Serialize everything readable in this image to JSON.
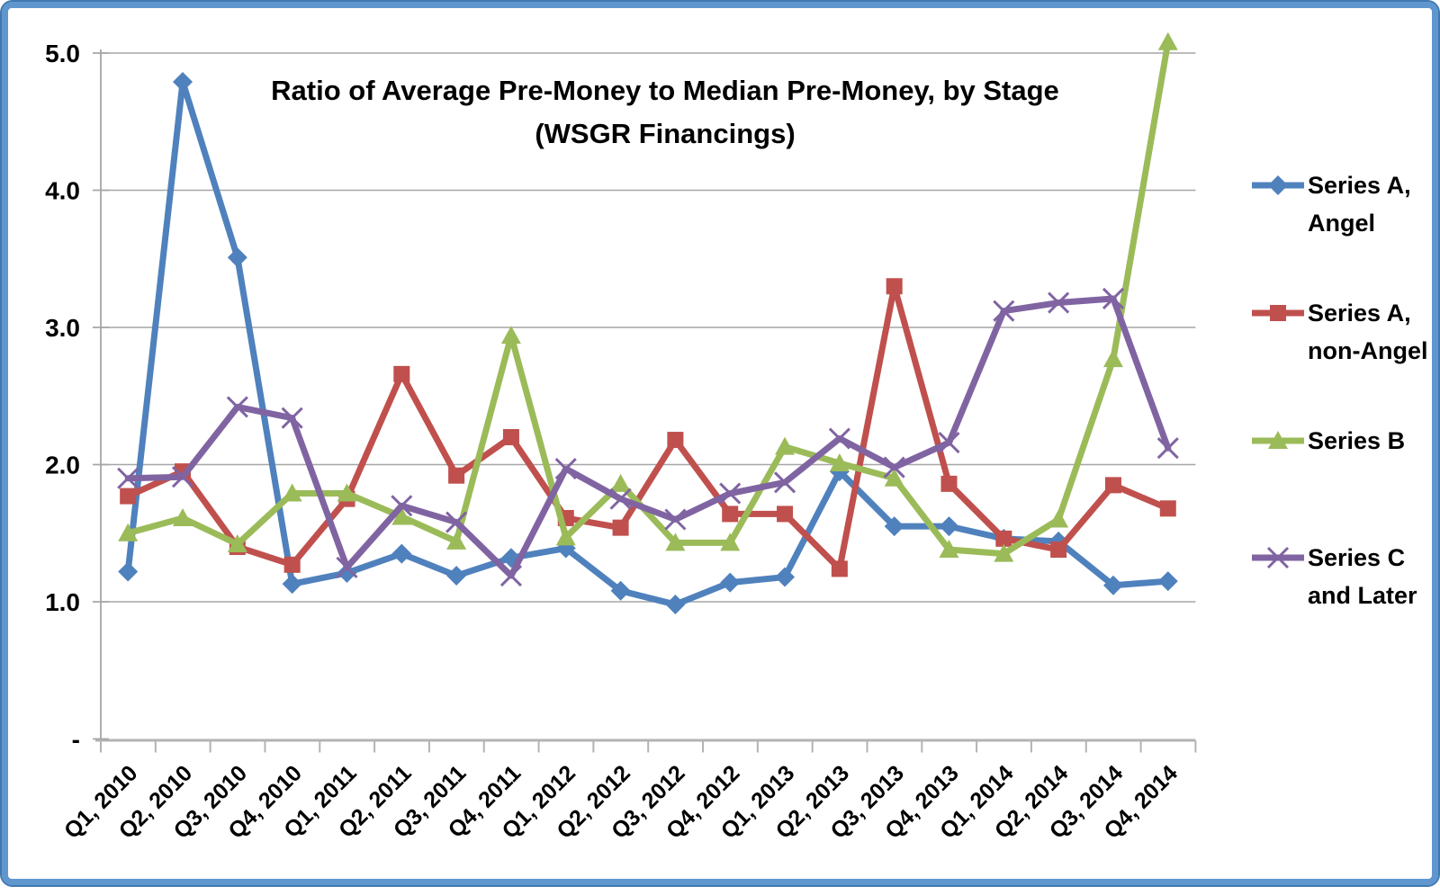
{
  "frame": {
    "border_color": "#6096ce",
    "border_edge_color": "#4178ae"
  },
  "chart_data": {
    "type": "line",
    "title_line1": "Ratio of Average Pre-Money to Median Pre-Money, by Stage",
    "title_line2": "(WSGR Financings)",
    "categories": [
      "Q1, 2010",
      "Q2, 2010",
      "Q3, 2010",
      "Q4, 2010",
      "Q1, 2011",
      "Q2, 2011",
      "Q3, 2011",
      "Q4, 2011",
      "Q1, 2012",
      "Q2, 2012",
      "Q3, 2012",
      "Q4, 2012",
      "Q1, 2013",
      "Q2, 2013",
      "Q3, 2013",
      "Q4, 2013",
      "Q1, 2014",
      "Q2, 2014",
      "Q3, 2014",
      "Q4, 2014"
    ],
    "y_axis": {
      "min": 0,
      "max": 5.0,
      "tick_interval": 1.0
    },
    "y_ticks": [
      {
        "label": "5.0",
        "value": 5.0
      },
      {
        "label": "4.0",
        "value": 4.0
      },
      {
        "label": "3.0",
        "value": 3.0
      },
      {
        "label": "2.0",
        "value": 2.0
      },
      {
        "label": "1.0",
        "value": 1.0
      },
      {
        "label": "-",
        "value": 0.0
      }
    ],
    "grid": true,
    "legend_position": "right",
    "series": [
      {
        "name": "Series A, Angel",
        "legend_lines": [
          "Series A,",
          "Angel"
        ],
        "color": "#4F81BD",
        "marker": "diamond",
        "values": [
          1.22,
          4.79,
          3.51,
          1.13,
          1.21,
          1.35,
          1.19,
          1.32,
          1.39,
          1.08,
          0.98,
          1.14,
          1.18,
          1.95,
          1.55,
          1.55,
          1.46,
          1.44,
          1.12,
          1.15
        ]
      },
      {
        "name": "Series A, non-Angel",
        "legend_lines": [
          "Series A,",
          "non-Angel"
        ],
        "color": "#C0504D",
        "marker": "square",
        "values": [
          1.77,
          1.95,
          1.4,
          1.27,
          1.75,
          2.66,
          1.92,
          2.2,
          1.61,
          1.54,
          2.18,
          1.64,
          1.64,
          1.24,
          3.3,
          1.86,
          1.46,
          1.38,
          1.85,
          1.68
        ]
      },
      {
        "name": "Series B",
        "legend_lines": [
          "Series B"
        ],
        "color": "#9BBB59",
        "marker": "triangle",
        "values": [
          1.5,
          1.61,
          1.42,
          1.79,
          1.79,
          1.62,
          1.44,
          2.94,
          1.47,
          1.86,
          1.43,
          1.43,
          2.13,
          2.01,
          1.9,
          1.38,
          1.35,
          1.6,
          2.77,
          5.08
        ]
      },
      {
        "name": "Series C and Later",
        "legend_lines": [
          "Series C",
          "and Later"
        ],
        "color": "#8064A2",
        "marker": "x",
        "values": [
          1.9,
          1.91,
          2.42,
          2.34,
          1.25,
          1.7,
          1.58,
          1.19,
          1.97,
          1.75,
          1.6,
          1.79,
          1.87,
          2.19,
          1.98,
          2.16,
          3.12,
          3.18,
          3.21,
          2.12
        ]
      }
    ],
    "colors": {
      "gridline": "#a6a6a6",
      "axis": "#b3b3b3",
      "text": "#000000"
    }
  }
}
